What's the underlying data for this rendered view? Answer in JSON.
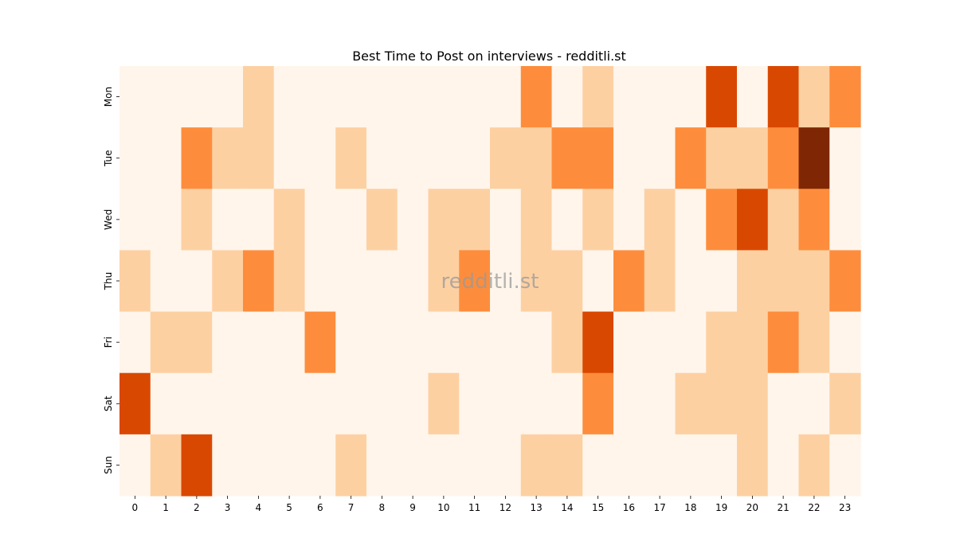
{
  "chart_data": {
    "type": "heatmap",
    "title": "Best Time to Post on interviews - redditli.st",
    "watermark": "redditli.st",
    "xlabel": "",
    "ylabel": "",
    "x_categories": [
      "0",
      "1",
      "2",
      "3",
      "4",
      "5",
      "6",
      "7",
      "8",
      "9",
      "10",
      "11",
      "12",
      "13",
      "14",
      "15",
      "16",
      "17",
      "18",
      "19",
      "20",
      "21",
      "22",
      "23"
    ],
    "y_categories": [
      "Mon",
      "Tue",
      "Wed",
      "Thu",
      "Fri",
      "Sat",
      "Sun"
    ],
    "values": [
      [
        0,
        0,
        0,
        0,
        1,
        0,
        0,
        0,
        0,
        0,
        0,
        0,
        0,
        2,
        0,
        1,
        0,
        0,
        0,
        3,
        0,
        3,
        1,
        2
      ],
      [
        0,
        0,
        2,
        1,
        1,
        0,
        0,
        1,
        0,
        0,
        0,
        0,
        1,
        1,
        2,
        2,
        0,
        0,
        2,
        1,
        1,
        2,
        4,
        0
      ],
      [
        0,
        0,
        1,
        0,
        0,
        1,
        0,
        0,
        1,
        0,
        1,
        1,
        0,
        1,
        0,
        1,
        0,
        1,
        0,
        2,
        3,
        1,
        2,
        0
      ],
      [
        1,
        0,
        0,
        1,
        2,
        1,
        0,
        0,
        0,
        0,
        1,
        2,
        0,
        1,
        1,
        0,
        2,
        1,
        0,
        0,
        1,
        1,
        1,
        2
      ],
      [
        0,
        1,
        1,
        0,
        0,
        0,
        2,
        0,
        0,
        0,
        0,
        0,
        0,
        0,
        1,
        3,
        0,
        0,
        0,
        1,
        1,
        2,
        1,
        0
      ],
      [
        3,
        0,
        0,
        0,
        0,
        0,
        0,
        0,
        0,
        0,
        1,
        0,
        0,
        0,
        0,
        2,
        0,
        0,
        1,
        1,
        1,
        0,
        0,
        1
      ],
      [
        0,
        1,
        3,
        0,
        0,
        0,
        0,
        1,
        0,
        0,
        0,
        0,
        0,
        1,
        1,
        0,
        0,
        0,
        0,
        0,
        1,
        0,
        1,
        0
      ]
    ],
    "color_scale": [
      "#fff5eb",
      "#fdd0a2",
      "#fd8d3c",
      "#d94801",
      "#7f2704"
    ],
    "colorbar": false,
    "grid": false
  }
}
